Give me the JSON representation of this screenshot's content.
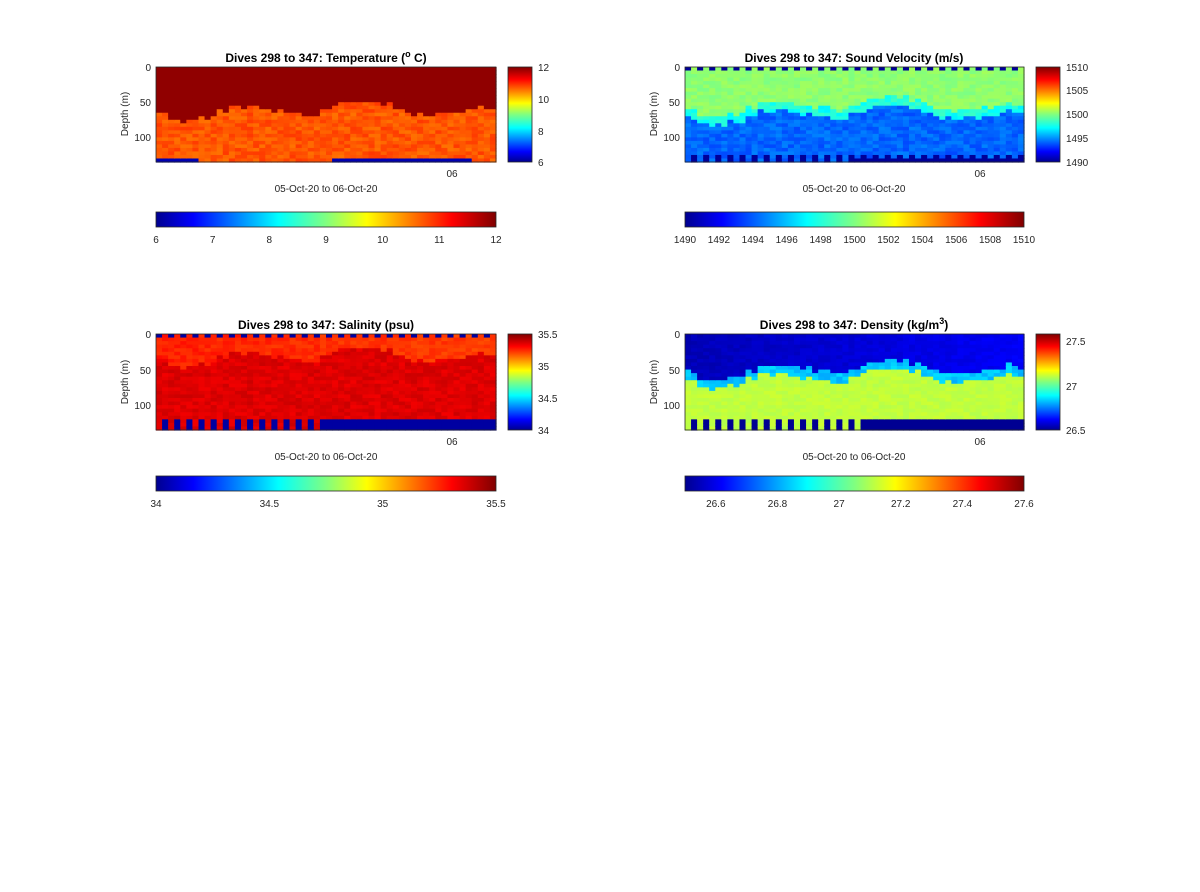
{
  "chart_data": [
    {
      "type": "heatmap",
      "title_prefix": "Dives 298 to 347: Temperature (",
      "title_sup": "o",
      "title_suffix": " C)",
      "ylabel": "Depth (m)",
      "xlabel": "05-Oct-20 to 06-Oct-20",
      "x_tick_label": "06",
      "y_ticks": [
        0,
        50,
        100
      ],
      "y_range": [
        0,
        135
      ],
      "colorbar_range": [
        6,
        12
      ],
      "colorbar_ticks": [
        "12",
        "10",
        "8",
        "6"
      ],
      "horizontal_colorbar_ticks": [
        "6",
        "7",
        "8",
        "9",
        "10",
        "11",
        "12"
      ],
      "colormap": "jet",
      "grid": "off",
      "field": "temperature"
    },
    {
      "type": "heatmap",
      "title_prefix": "Dives 298 to 347: Sound Velocity (m/s)",
      "title_sup": "",
      "title_suffix": "",
      "ylabel": "Depth (m)",
      "xlabel": "05-Oct-20 to 06-Oct-20",
      "x_tick_label": "06",
      "y_ticks": [
        0,
        50,
        100
      ],
      "y_range": [
        0,
        135
      ],
      "colorbar_range": [
        1490,
        1510
      ],
      "colorbar_ticks": [
        "1510",
        "1505",
        "1500",
        "1495",
        "1490"
      ],
      "horizontal_colorbar_ticks": [
        "1490",
        "1492",
        "1494",
        "1496",
        "1498",
        "1500",
        "1502",
        "1504",
        "1506",
        "1508",
        "1510"
      ],
      "colormap": "jet",
      "grid": "off",
      "field": "sound_velocity"
    },
    {
      "type": "heatmap",
      "title_prefix": "Dives 298 to 347: Salinity (psu)",
      "title_sup": "",
      "title_suffix": "",
      "ylabel": "Depth (m)",
      "xlabel": "05-Oct-20 to 06-Oct-20",
      "x_tick_label": "06",
      "y_ticks": [
        0,
        50,
        100
      ],
      "y_range": [
        0,
        135
      ],
      "colorbar_range": [
        34,
        35.5
      ],
      "colorbar_ticks": [
        "35.5",
        "35",
        "34.5",
        "34"
      ],
      "horizontal_colorbar_ticks": [
        "34",
        "34.5",
        "35",
        "35.5"
      ],
      "colormap": "jet",
      "grid": "off",
      "field": "salinity"
    },
    {
      "type": "heatmap",
      "title_prefix": "Dives 298 to 347: Density (kg/m",
      "title_sup": "3",
      "title_suffix": ")",
      "ylabel": "Depth (m)",
      "xlabel": "05-Oct-20 to 06-Oct-20",
      "x_tick_label": "06",
      "y_ticks": [
        0,
        50,
        100
      ],
      "y_range": [
        0,
        135
      ],
      "colorbar_range": [
        26.5,
        27.6
      ],
      "colorbar_ticks": [
        "27.5",
        "27",
        "26.5"
      ],
      "horizontal_colorbar_ticks": [
        "26.6",
        "26.8",
        "27",
        "27.2",
        "27.4",
        "27.6"
      ],
      "colormap": "jet",
      "grid": "off",
      "field": "density"
    }
  ]
}
